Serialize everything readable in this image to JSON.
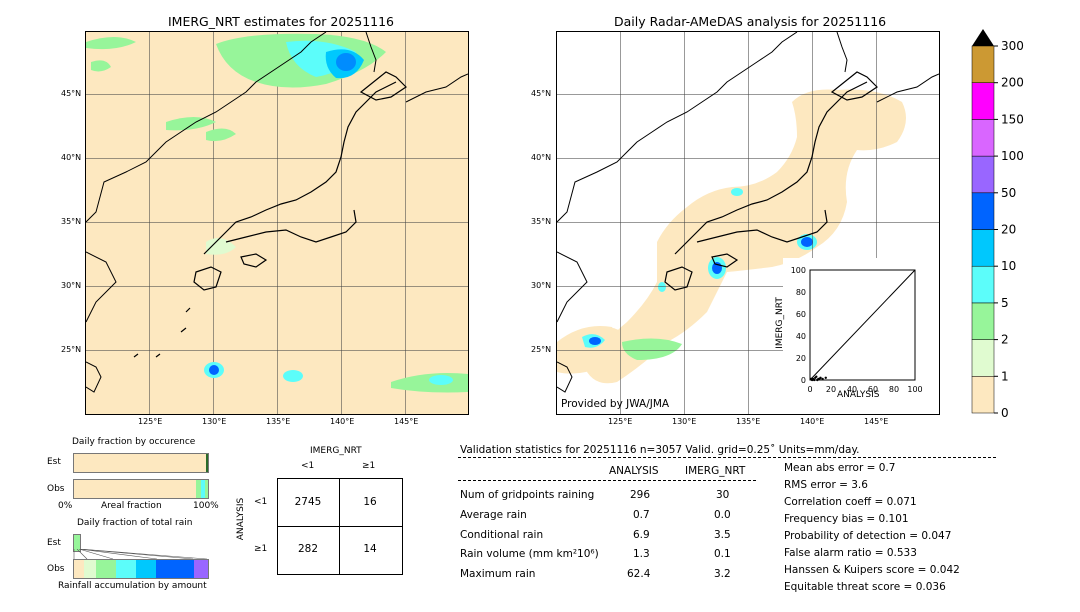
{
  "left_map": {
    "title": "IMERG_NRT estimates for 20251116",
    "lat_labels": [
      "45°N",
      "40°N",
      "35°N",
      "30°N",
      "25°N"
    ],
    "lon_labels": [
      "125°E",
      "130°E",
      "135°E",
      "140°E",
      "145°E"
    ]
  },
  "right_map": {
    "title": "Daily Radar-AMeDAS analysis for 20251116",
    "lat_labels": [
      "45°N",
      "40°N",
      "35°N",
      "30°N",
      "25°N"
    ],
    "lon_labels": [
      "125°E",
      "130°E",
      "135°E",
      "140°E",
      "145°E"
    ],
    "credit": "Provided by JWA/JMA"
  },
  "colorbar": {
    "ticks": [
      "0",
      "1",
      "2",
      "5",
      "10",
      "20",
      "50",
      "100",
      "150",
      "200",
      "300"
    ],
    "colors": [
      "#fde8c0",
      "#e0fbd0",
      "#97f59a",
      "#5cfdfa",
      "#00c8fd",
      "#0064ff",
      "#9966ff",
      "#d966ff",
      "#ff00ff",
      "#cc9933"
    ]
  },
  "chart_data": [
    {
      "type": "scatter",
      "title": "",
      "xlabel": "ANALYSIS",
      "ylabel": "IMERG_NRT",
      "xlim": [
        0,
        100
      ],
      "ylim": [
        0,
        100
      ],
      "x_ticks": [
        "0",
        "20",
        "40",
        "60",
        "80",
        "100"
      ],
      "y_ticks": [
        "0",
        "20",
        "40",
        "60",
        "80",
        "100"
      ],
      "points": [
        [
          1,
          1
        ],
        [
          2,
          0
        ],
        [
          3,
          1
        ],
        [
          5,
          2
        ],
        [
          6,
          3
        ],
        [
          8,
          1
        ],
        [
          10,
          2
        ],
        [
          12,
          1
        ],
        [
          15,
          2
        ],
        [
          4,
          0
        ],
        [
          7,
          0
        ],
        [
          9,
          1
        ]
      ]
    },
    {
      "type": "bar",
      "title": "Daily fraction by occurence",
      "row_labels": [
        "Est",
        "Obs"
      ],
      "xlabel": "Areal fraction",
      "x_ticks": [
        "0%",
        "100%"
      ]
    },
    {
      "type": "bar",
      "title": "Daily fraction of total rain",
      "row_labels": [
        "Est",
        "Obs"
      ],
      "xlabel": "Rainfall accumulation by amount"
    },
    {
      "type": "table",
      "title": "IMERG_NRT",
      "col_labels": [
        "<1",
        "≥1"
      ],
      "row_axis": "ANALYSIS",
      "row_labels": [
        "<1",
        "≥1"
      ],
      "cells": [
        [
          "2745",
          "16"
        ],
        [
          "282",
          "14"
        ]
      ]
    }
  ],
  "validation": {
    "header": "Validation statistics for 20251116  n=3057 Valid. grid=0.25˚ Units=mm/day.",
    "col_analysis": "ANALYSIS",
    "col_imerg": "IMERG_NRT",
    "rows": [
      {
        "label": "Num of gridpoints raining",
        "analysis": "296",
        "imerg": "30"
      },
      {
        "label": "Average rain",
        "analysis": "0.7",
        "imerg": "0.0"
      },
      {
        "label": "Conditional rain",
        "analysis": "6.9",
        "imerg": "3.5"
      },
      {
        "label": "Rain volume (mm km²10⁶)",
        "analysis": "1.3",
        "imerg": "0.1"
      },
      {
        "label": "Maximum rain",
        "analysis": "62.4",
        "imerg": "3.2"
      }
    ],
    "scores": [
      "Mean abs error =    0.7",
      "RMS error =    3.6",
      "Correlation coeff =  0.071",
      "Frequency bias =  0.101",
      "Probability of detection =  0.047",
      "False alarm ratio =  0.533",
      "Hanssen & Kuipers score =  0.042",
      "Equitable threat score =  0.036"
    ]
  }
}
